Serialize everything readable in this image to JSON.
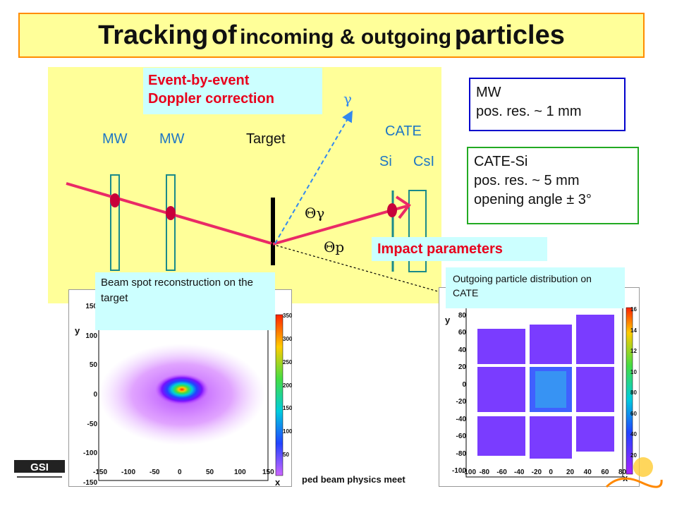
{
  "title": {
    "part1": "Tracking",
    "part2": "of",
    "part3": "incoming & outgoing",
    "part4": "particles"
  },
  "setup": {
    "mw1": "MW",
    "mw2": "MW",
    "target": "Target",
    "cate": "CATE",
    "si": "Si",
    "csi": "CsI",
    "gamma": "γ",
    "theta_gamma": "Θγ",
    "theta_p": "Θp"
  },
  "doppler": {
    "line1": "Event-by-event",
    "line2": "Doppler correction"
  },
  "impact": "Impact parameters",
  "mw_box": {
    "line1": "MW",
    "line2": "pos. res. ~ 1 mm"
  },
  "cate_box": {
    "line1": "CATE-Si",
    "line2": "pos. res. ~ 5 mm",
    "line3": "opening angle ± 3°"
  },
  "beam_plot": {
    "note": "Beam spot reconstruction on the target",
    "ylabel": "y",
    "xlabel": "x",
    "yticks": [
      "150",
      "100",
      "50",
      "0",
      "-50",
      "-100",
      "-150"
    ],
    "xticks": [
      "-150",
      "-100",
      "-50",
      "0",
      "50",
      "100",
      "150"
    ],
    "scale": [
      "350",
      "300",
      "250",
      "200",
      "150",
      "100",
      "50"
    ]
  },
  "cate_plot": {
    "note": "Outgoing particle distribution on CATE",
    "ylabel": "y",
    "xlabel": "x",
    "yticks": [
      "80",
      "60",
      "40",
      "20",
      "0",
      "-20",
      "-40",
      "-60",
      "-80",
      "-100"
    ],
    "xticks": [
      "-100",
      "-80",
      "-60",
      "-40",
      "-20",
      "0",
      "20",
      "40",
      "60",
      "80"
    ],
    "scale": [
      "16",
      "14",
      "12",
      "10",
      "80",
      "60",
      "40",
      "20"
    ]
  },
  "footer": "ped beam physics meet",
  "colors": {
    "arrow": "#ea2a66",
    "detector": "#1a8a8a",
    "label_blue": "#1f77c4",
    "red": "#e8001c"
  }
}
